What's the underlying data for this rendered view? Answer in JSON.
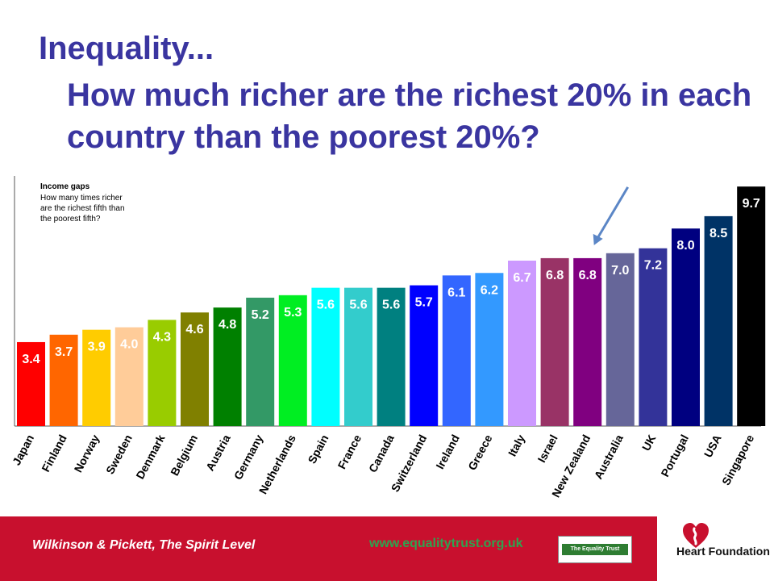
{
  "title": {
    "line1": "Inequality...",
    "line2": "How much richer are the richest 20% in each country than the poorest 20%?"
  },
  "chart_data": {
    "type": "bar",
    "annotation": {
      "heading": "Income gaps",
      "lines": [
        "How many times richer",
        "are the richest fifth than",
        "the poorest fifth?"
      ]
    },
    "categories": [
      "Japan",
      "Finland",
      "Norway",
      "Sweden",
      "Denmark",
      "Belgium",
      "Austria",
      "Germany",
      "Netherlands",
      "Spain",
      "France",
      "Canada",
      "Switzerland",
      "Ireland",
      "Greece",
      "Italy",
      "Israel",
      "New Zealand",
      "Australia",
      "UK",
      "Portugal",
      "USA",
      "Singapore"
    ],
    "values": [
      3.4,
      3.7,
      3.9,
      4.0,
      4.3,
      4.6,
      4.8,
      5.2,
      5.3,
      5.6,
      5.6,
      5.6,
      5.7,
      6.1,
      6.2,
      6.7,
      6.8,
      6.8,
      7.0,
      7.2,
      8.0,
      8.5,
      9.7
    ],
    "labels": [
      "3.4",
      "3.7",
      "3.9",
      "4.0",
      "4.3",
      "4.6",
      "4.8",
      "5.2",
      "5.3",
      "5.6",
      "5.6",
      "5.6",
      "5.7",
      "6.1",
      "6.2",
      "6.7",
      "6.8",
      "6.8",
      "7.0",
      "7.2",
      "8.0",
      "8.5",
      "9.7"
    ],
    "colors": [
      "#ff0000",
      "#ff6600",
      "#ffcc00",
      "#ffcc99",
      "#99cc00",
      "#808000",
      "#008000",
      "#339966",
      "#00ee22",
      "#00ffff",
      "#33cccc",
      "#008080",
      "#0000ff",
      "#3366ff",
      "#3399ff",
      "#cc99ff",
      "#993366",
      "#800080",
      "#666699",
      "#333399",
      "#000080",
      "#003366",
      "#000000"
    ],
    "label_colors": [
      "#ffffff",
      "#ffffff",
      "#ffffff",
      "#ffffff",
      "#ffffff",
      "#ffffff",
      "#ffffff",
      "#ffffff",
      "#ffffff",
      "#ffffff",
      "#ffffff",
      "#ffffff",
      "#ffffff",
      "#ffffff",
      "#ffffff",
      "#ffffff",
      "#ffffff",
      "#ffffff",
      "#ffffff",
      "#ffffff",
      "#ffffff",
      "#ffffff",
      "#ffffff"
    ],
    "ylim": [
      0,
      10
    ],
    "grid": false,
    "highlight_arrow": "New Zealand",
    "arrow_color": "#5b86c6"
  },
  "footer": {
    "source": "Wilkinson & Pickett, The Spirit Level",
    "url": "www.equalitytrust.org.uk",
    "equality_trust_logo": "The Equality Trust",
    "heart_foundation": "Heart Foundation"
  },
  "colors": {
    "title": "#3a35a0",
    "footer_bg": "#c8102e",
    "url": "#2fa34f"
  }
}
